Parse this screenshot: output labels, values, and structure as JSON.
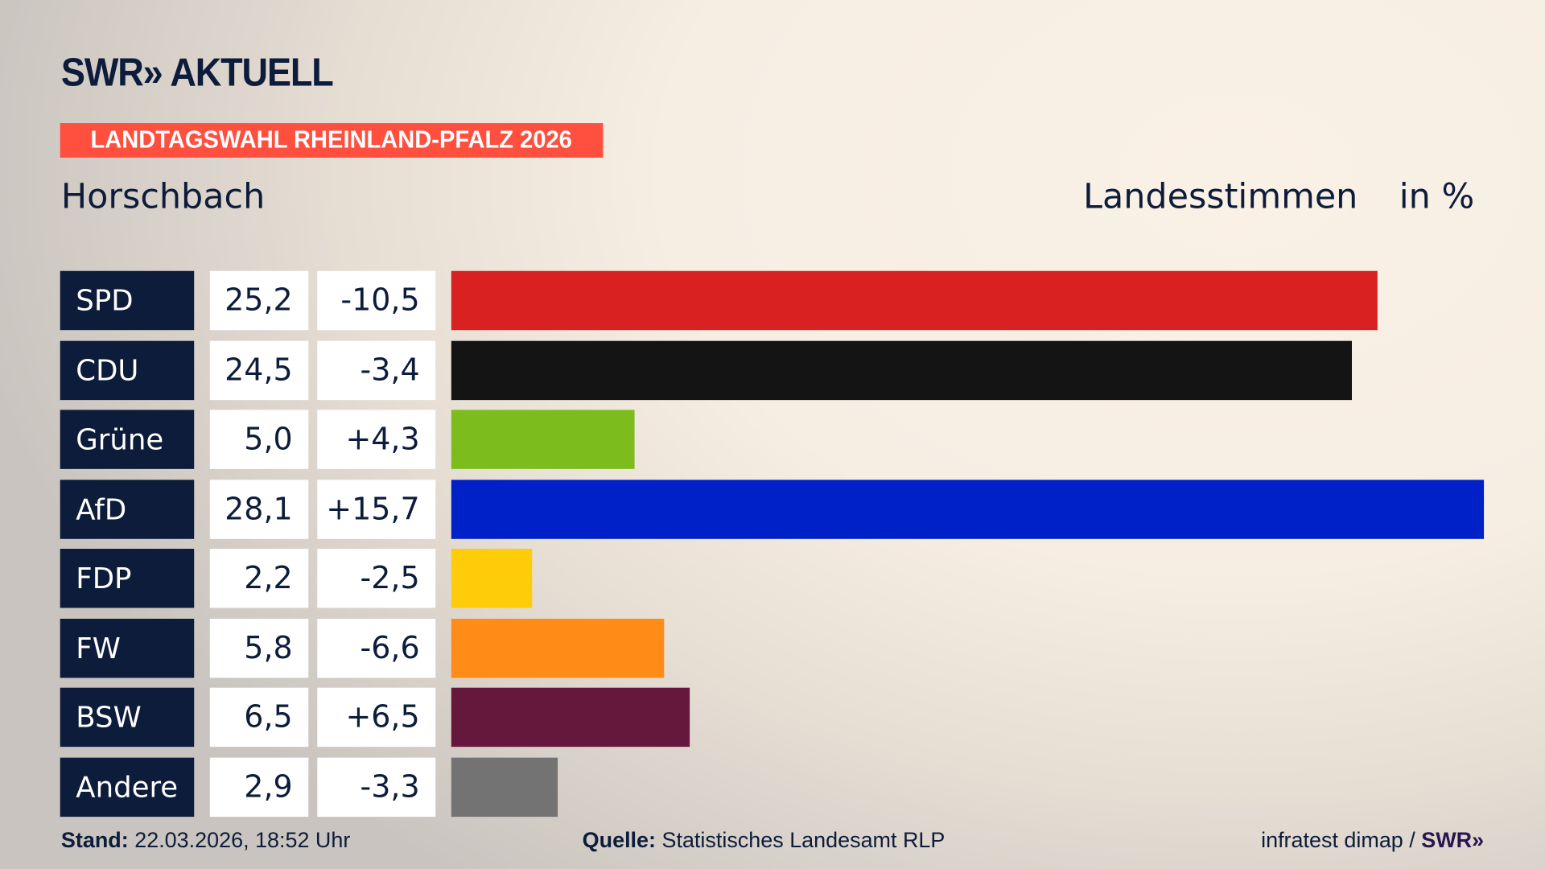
{
  "header": {
    "logo": "SWR» AKTUELL",
    "banner": "LANDTAGSWAHL RHEINLAND-PFALZ 2026",
    "place": "Horschbach",
    "metric": "Landesstimmen",
    "unit": "in %"
  },
  "chart_data": {
    "type": "bar",
    "orientation": "horizontal",
    "xlim": [
      0,
      28.1
    ],
    "categories": [
      "SPD",
      "CDU",
      "Grüne",
      "AfD",
      "FDP",
      "FW",
      "BSW",
      "Andere"
    ],
    "values": [
      25.2,
      24.5,
      5.0,
      28.1,
      2.2,
      5.8,
      6.5,
      2.9
    ],
    "value_labels": [
      "25,2",
      "24,5",
      "5,0",
      "28,1",
      "2,2",
      "5,8",
      "6,5",
      "2,9"
    ],
    "diff_labels": [
      "-10,5",
      "-3,4",
      "+4,3",
      "+15,7",
      "-2,5",
      "-6,6",
      "+6,5",
      "-3,3"
    ],
    "colors": [
      "#d92121",
      "#141414",
      "#7cbd1d",
      "#0021c8",
      "#ffcc0a",
      "#ff8c17",
      "#65183c",
      "#737373"
    ]
  },
  "footer": {
    "stand_label": "Stand:",
    "stand_value": "22.03.2026, 18:52 Uhr",
    "source_label": "Quelle:",
    "source_value": "Statistisches Landesamt RLP",
    "credit": "infratest dimap /",
    "credit_logo": "SWR»"
  }
}
